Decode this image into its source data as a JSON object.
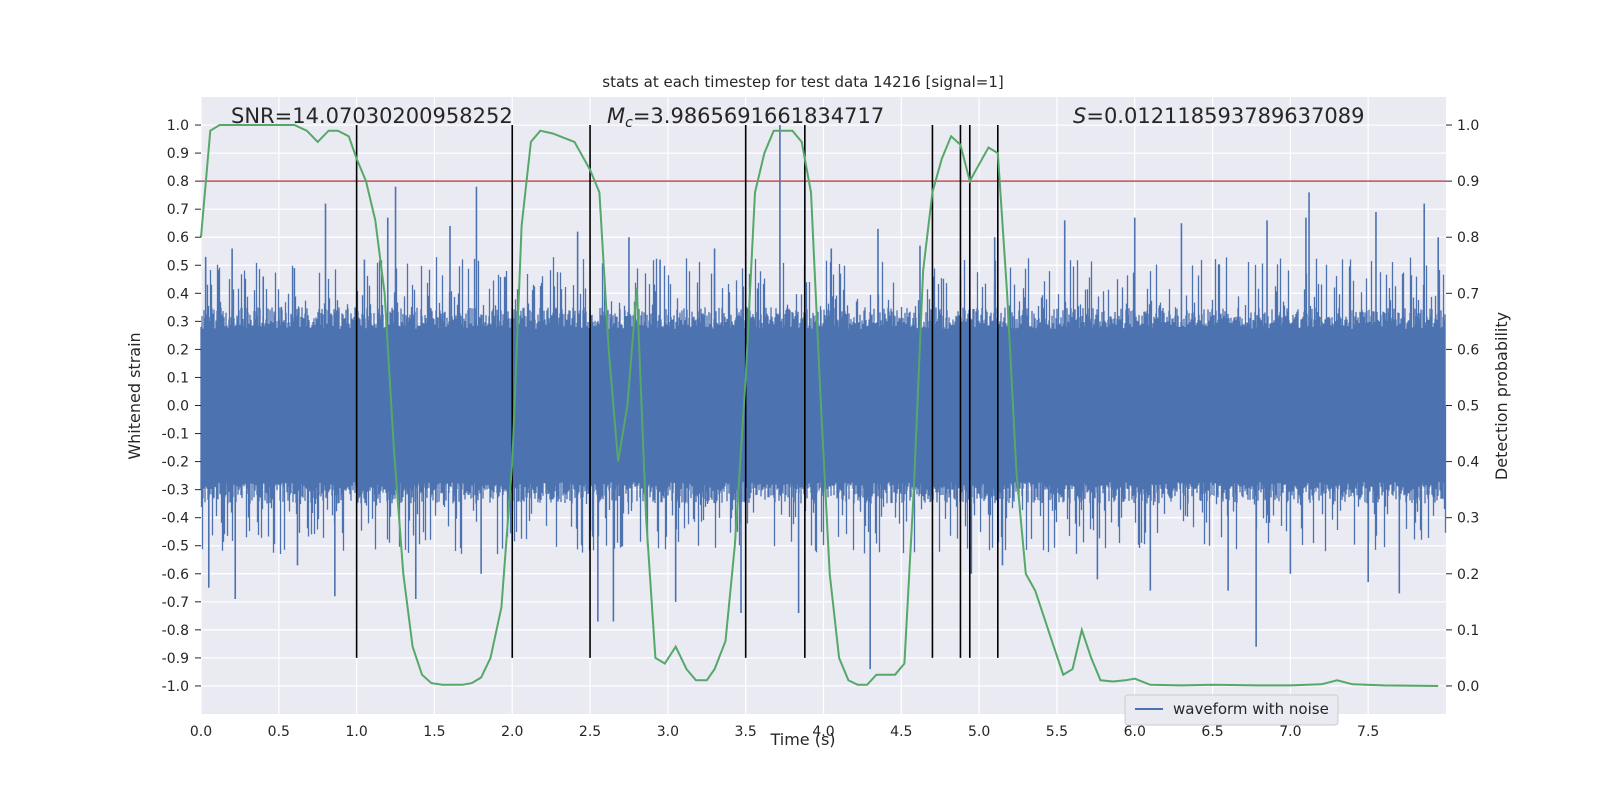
{
  "chart_data": {
    "type": "line",
    "title": "stats at each timestep for test data 14216 [signal=1]",
    "xlabel": "Time (s)",
    "ylabel": "Whitened strain",
    "y2label": "Detection probability",
    "xlim": [
      0.0,
      8.0
    ],
    "ylim": [
      -1.1,
      1.1
    ],
    "y2lim": [
      -0.05,
      1.05
    ],
    "xticks": [
      "0.0",
      "0.5",
      "1.0",
      "1.5",
      "2.0",
      "2.5",
      "3.0",
      "3.5",
      "4.0",
      "4.5",
      "5.0",
      "5.5",
      "6.0",
      "6.5",
      "7.0",
      "7.5"
    ],
    "yticks": [
      "1.0",
      "0.9",
      "0.8",
      "0.7",
      "0.6",
      "0.5",
      "0.4",
      "0.3",
      "0.2",
      "0.1",
      "0.0",
      "-0.1",
      "-0.2",
      "-0.3",
      "-0.4",
      "-0.5",
      "-0.6",
      "-0.7",
      "-0.8",
      "-0.9",
      "-1.0"
    ],
    "y2ticks": [
      "1.0",
      "0.9",
      "0.8",
      "0.7",
      "0.6",
      "0.5",
      "0.4",
      "0.3",
      "0.2",
      "0.1",
      "0.0"
    ],
    "annotations": {
      "snr": "SNR=14.07030200958252",
      "mc_symbol": "M",
      "mc_sub": "c",
      "mc_value": "=3.9865691661834717",
      "s_symbol": "S",
      "s_value": "=0.012118593789637089"
    },
    "legend": {
      "label": "waveform with noise",
      "position": "lower-right"
    },
    "threshold": {
      "value": 0.9,
      "color": "#c44e52"
    },
    "vlines": [
      1.0,
      2.0,
      2.5,
      3.5,
      3.88,
      4.7,
      4.88,
      4.94,
      5.12
    ],
    "vline_range": [
      -0.9,
      1.0
    ],
    "series": [
      {
        "name": "waveform with noise",
        "color": "#4c72b0",
        "noise_band": 0.35,
        "spikes": [
          {
            "x": 0.03,
            "y": 0.53
          },
          {
            "x": 0.05,
            "y": -0.65
          },
          {
            "x": 0.2,
            "y": 0.56
          },
          {
            "x": 0.22,
            "y": -0.69
          },
          {
            "x": 0.4,
            "y": 0.46
          },
          {
            "x": 0.6,
            "y": 0.49
          },
          {
            "x": 0.62,
            "y": -0.57
          },
          {
            "x": 0.8,
            "y": 0.72
          },
          {
            "x": 0.86,
            "y": -0.68
          },
          {
            "x": 1.05,
            "y": 0.52
          },
          {
            "x": 1.2,
            "y": 0.67
          },
          {
            "x": 1.25,
            "y": 0.78
          },
          {
            "x": 1.38,
            "y": -0.69
          },
          {
            "x": 1.6,
            "y": 0.64
          },
          {
            "x": 1.8,
            "y": -0.6
          },
          {
            "x": 1.77,
            "y": 0.78
          },
          {
            "x": 2.42,
            "y": 0.62
          },
          {
            "x": 2.55,
            "y": -0.77
          },
          {
            "x": 2.65,
            "y": -0.77
          },
          {
            "x": 2.75,
            "y": 0.6
          },
          {
            "x": 2.95,
            "y": 0.52
          },
          {
            "x": 3.05,
            "y": -0.7
          },
          {
            "x": 3.3,
            "y": 0.56
          },
          {
            "x": 3.47,
            "y": -0.74
          },
          {
            "x": 3.72,
            "y": 1.0
          },
          {
            "x": 3.84,
            "y": -0.74
          },
          {
            "x": 4.05,
            "y": 0.56
          },
          {
            "x": 4.3,
            "y": -0.94
          },
          {
            "x": 4.35,
            "y": 0.63
          },
          {
            "x": 4.62,
            "y": 0.57
          },
          {
            "x": 4.95,
            "y": -0.6
          },
          {
            "x": 5.1,
            "y": 0.6
          },
          {
            "x": 5.15,
            "y": -0.57
          },
          {
            "x": 5.55,
            "y": 0.66
          },
          {
            "x": 5.76,
            "y": -0.62
          },
          {
            "x": 6.0,
            "y": 0.67
          },
          {
            "x": 6.1,
            "y": -0.66
          },
          {
            "x": 6.3,
            "y": 0.65
          },
          {
            "x": 6.6,
            "y": -0.66
          },
          {
            "x": 6.78,
            "y": -0.86
          },
          {
            "x": 6.85,
            "y": 0.66
          },
          {
            "x": 7.0,
            "y": -0.6
          },
          {
            "x": 7.1,
            "y": 0.67
          },
          {
            "x": 7.12,
            "y": 0.76
          },
          {
            "x": 7.5,
            "y": -0.63
          },
          {
            "x": 7.55,
            "y": 0.69
          },
          {
            "x": 7.7,
            "y": -0.67
          },
          {
            "x": 7.86,
            "y": 0.72
          },
          {
            "x": 7.95,
            "y": 0.6
          }
        ]
      },
      {
        "name": "detection probability",
        "color": "#55a868",
        "axis": "right",
        "x": [
          0.0,
          0.06,
          0.12,
          0.2,
          0.3,
          0.4,
          0.5,
          0.6,
          0.68,
          0.75,
          0.82,
          0.88,
          0.95,
          1.0,
          1.06,
          1.12,
          1.18,
          1.24,
          1.3,
          1.36,
          1.42,
          1.48,
          1.55,
          1.62,
          1.68,
          1.74,
          1.8,
          1.86,
          1.93,
          2.0,
          2.06,
          2.12,
          2.18,
          2.26,
          2.4,
          2.5,
          2.56,
          2.62,
          2.68,
          2.74,
          2.8,
          2.86,
          2.92,
          2.98,
          3.05,
          3.12,
          3.18,
          3.25,
          3.3,
          3.37,
          3.43,
          3.5,
          3.56,
          3.62,
          3.68,
          3.74,
          3.8,
          3.86,
          3.92,
          3.98,
          4.04,
          4.1,
          4.16,
          4.22,
          4.28,
          4.34,
          4.4,
          4.46,
          4.52,
          4.58,
          4.64,
          4.7,
          4.76,
          4.82,
          4.88,
          4.94,
          5.0,
          5.06,
          5.12,
          5.18,
          5.24,
          5.3,
          5.36,
          5.42,
          5.48,
          5.54,
          5.6,
          5.66,
          5.72,
          5.78,
          5.86,
          5.94,
          6.0,
          6.1,
          6.3,
          6.5,
          6.8,
          7.0,
          7.2,
          7.3,
          7.4,
          7.6,
          7.95
        ],
        "y": [
          0.8,
          0.99,
          1.0,
          1.0,
          1.0,
          1.0,
          1.0,
          1.0,
          0.99,
          0.97,
          0.99,
          0.99,
          0.98,
          0.94,
          0.9,
          0.83,
          0.7,
          0.42,
          0.2,
          0.07,
          0.02,
          0.005,
          0.002,
          0.002,
          0.002,
          0.005,
          0.015,
          0.05,
          0.14,
          0.4,
          0.82,
          0.97,
          0.99,
          0.985,
          0.97,
          0.92,
          0.88,
          0.6,
          0.4,
          0.5,
          0.71,
          0.3,
          0.05,
          0.04,
          0.07,
          0.03,
          0.01,
          0.01,
          0.03,
          0.08,
          0.25,
          0.55,
          0.88,
          0.95,
          0.99,
          0.99,
          0.99,
          0.97,
          0.88,
          0.52,
          0.2,
          0.05,
          0.01,
          0.002,
          0.002,
          0.02,
          0.02,
          0.02,
          0.04,
          0.35,
          0.74,
          0.88,
          0.94,
          0.98,
          0.965,
          0.9,
          0.93,
          0.96,
          0.95,
          0.7,
          0.38,
          0.2,
          0.17,
          0.12,
          0.07,
          0.02,
          0.03,
          0.1,
          0.05,
          0.01,
          0.008,
          0.01,
          0.013,
          0.002,
          0.001,
          0.002,
          0.001,
          0.001,
          0.003,
          0.01,
          0.003,
          0.001,
          0.0
        ]
      }
    ]
  }
}
